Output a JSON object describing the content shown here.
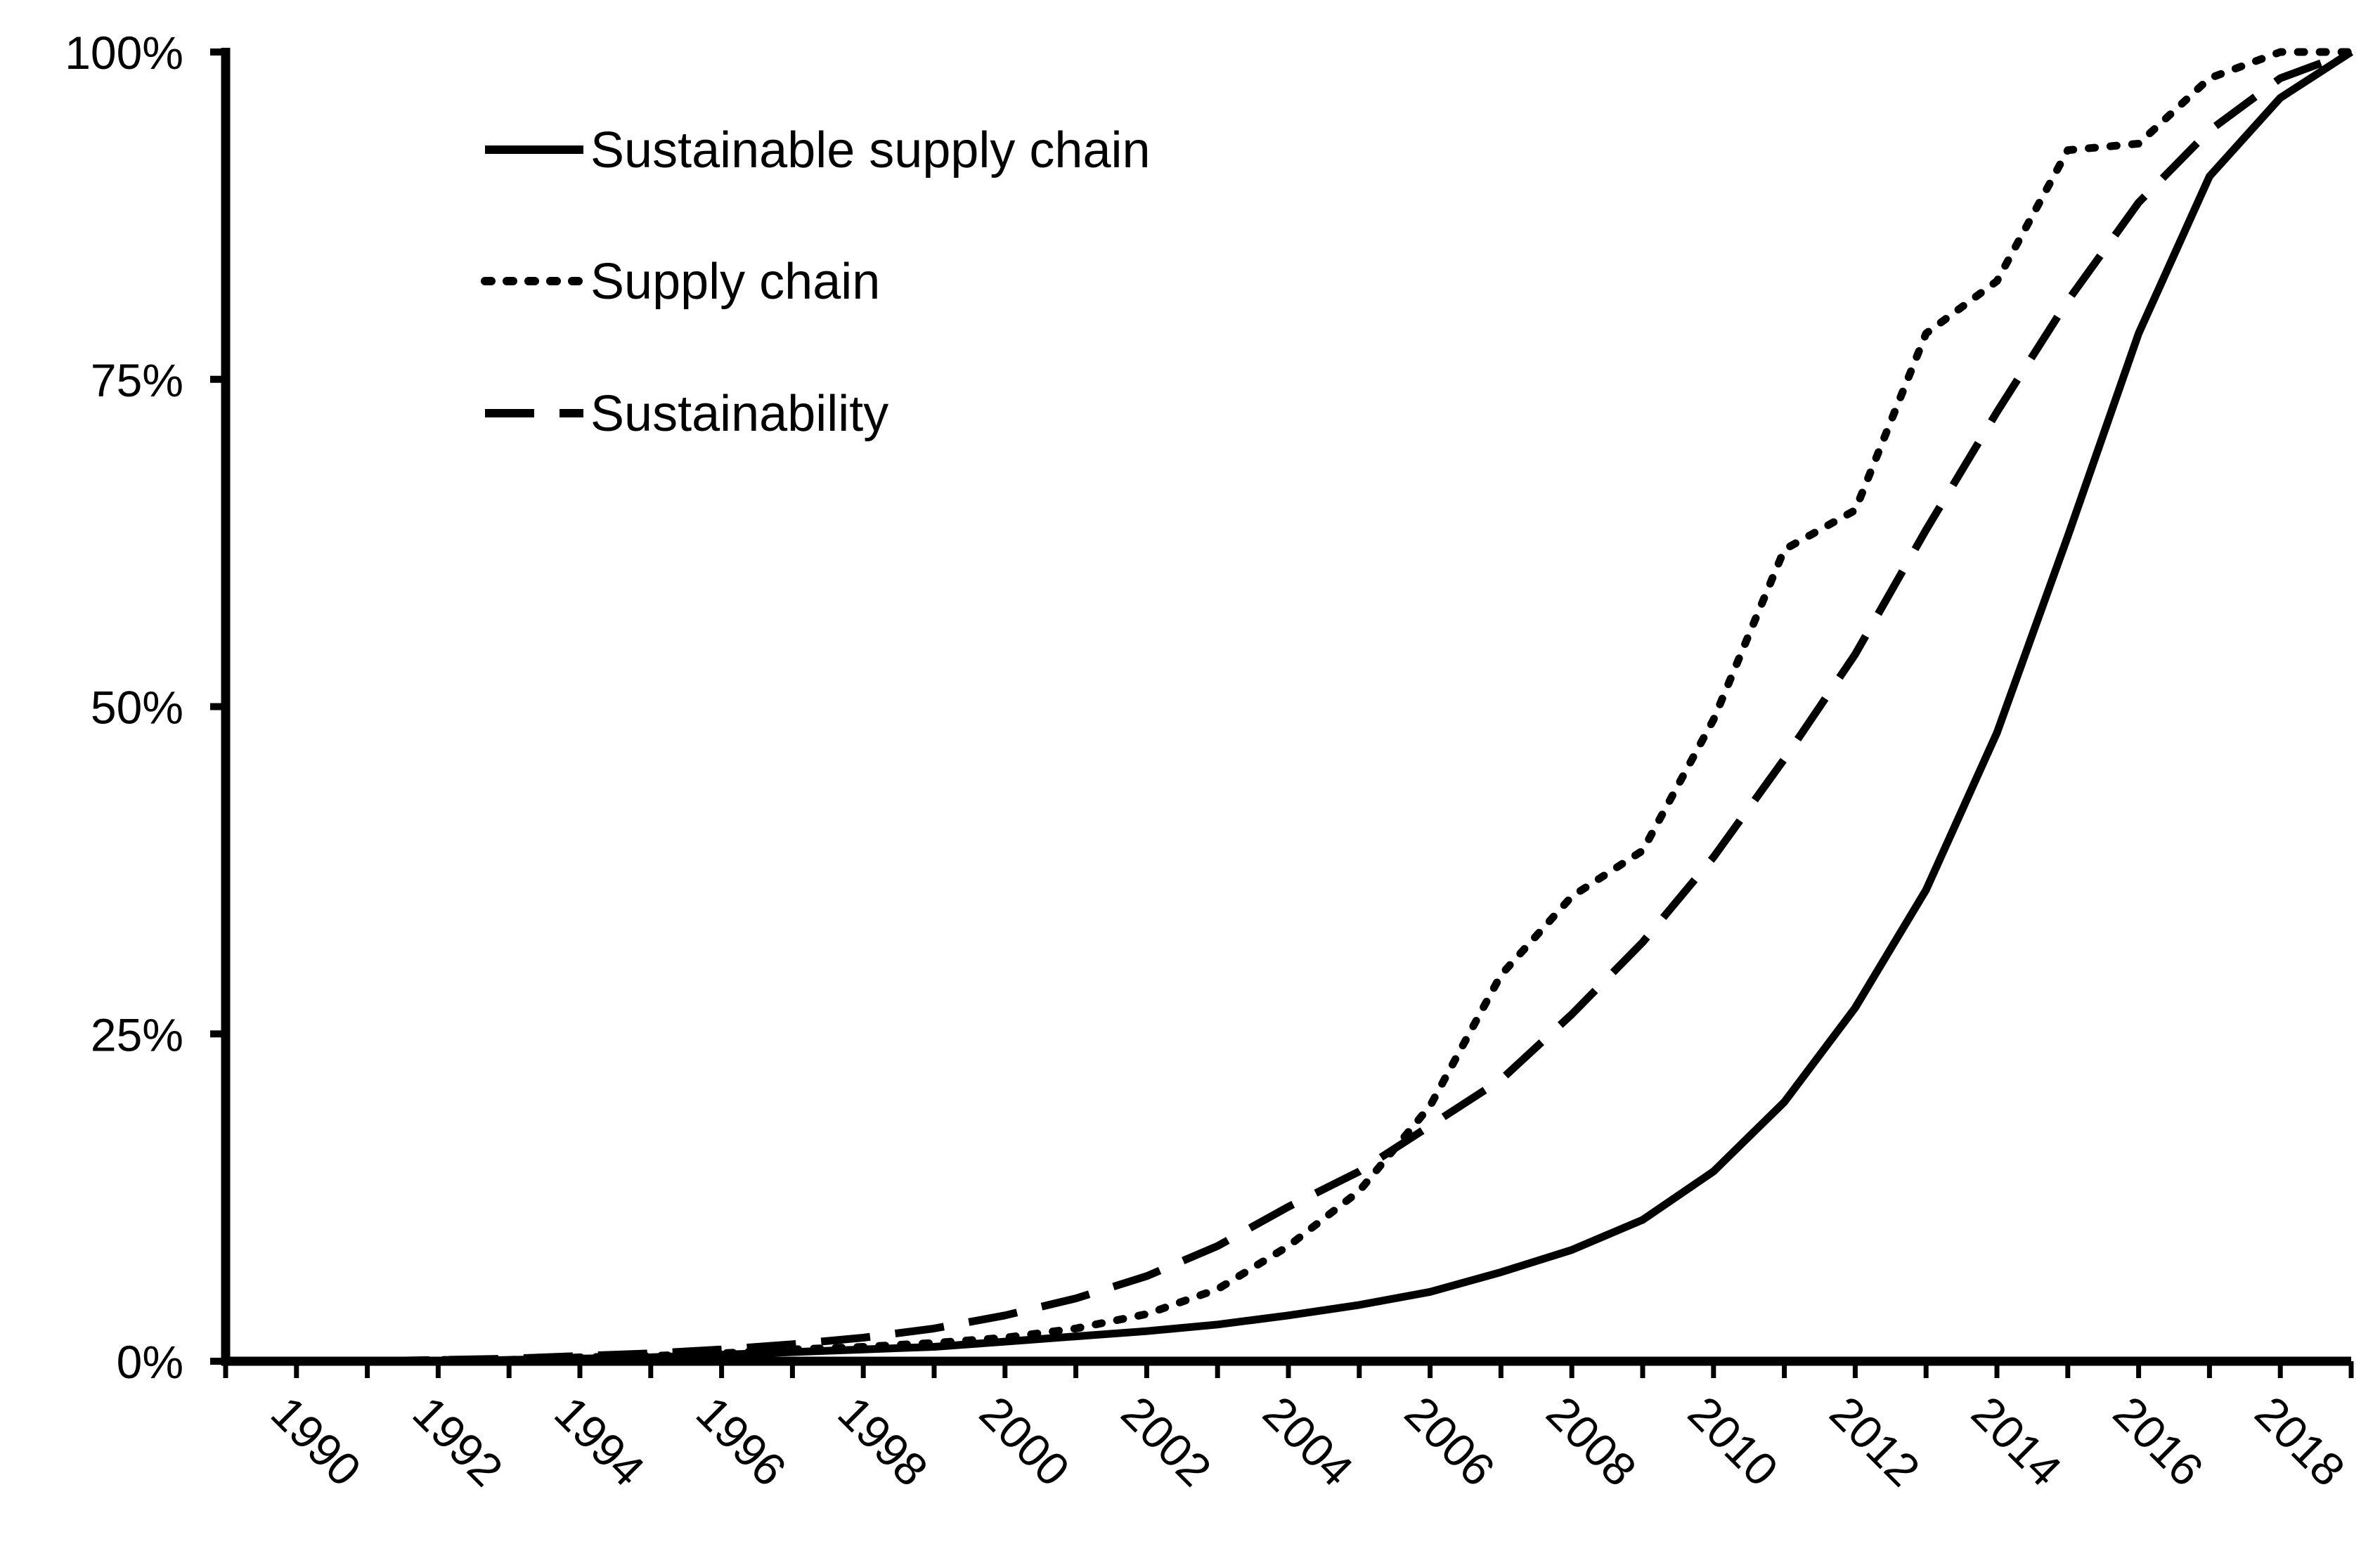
{
  "chart_data": {
    "type": "line",
    "title": "",
    "xlabel": "",
    "ylabel": "",
    "xlim": [
      1989,
      2019
    ],
    "ylim": [
      0,
      100
    ],
    "y_ticks": [
      0,
      25,
      50,
      75,
      100
    ],
    "y_tick_labels": [
      "0%",
      "25%",
      "50%",
      "75%",
      "100%"
    ],
    "x_ticks": [
      1990,
      1992,
      1994,
      1996,
      1998,
      2000,
      2002,
      2004,
      2006,
      2008,
      2010,
      2012,
      2014,
      2016,
      2018
    ],
    "x_tick_labels": [
      "1990",
      "1992",
      "1994",
      "1996",
      "1998",
      "2000",
      "2002",
      "2004",
      "2006",
      "2008",
      "2010",
      "2012",
      "2014",
      "2016",
      "2018"
    ],
    "grid": false,
    "legend_position": "top-left",
    "x": [
      1989,
      1990,
      1991,
      1992,
      1993,
      1994,
      1995,
      1996,
      1997,
      1998,
      1999,
      2000,
      2001,
      2002,
      2003,
      2004,
      2005,
      2006,
      2007,
      2008,
      2009,
      2010,
      2011,
      2012,
      2013,
      2014,
      2015,
      2016,
      2017,
      2018,
      2019
    ],
    "series": [
      {
        "name": "Sustainable supply chain",
        "style": "solid",
        "values": [
          0,
          0,
          0,
          0,
          0.1,
          0.2,
          0.3,
          0.5,
          0.7,
          0.9,
          1.1,
          1.5,
          1.9,
          2.3,
          2.8,
          3.5,
          4.3,
          5.3,
          6.8,
          8.5,
          10.8,
          14.5,
          19.8,
          27.0,
          36.0,
          48.0,
          63.0,
          78.5,
          90.5,
          96.5,
          100
        ]
      },
      {
        "name": "Supply chain",
        "style": "dotted",
        "values": [
          0,
          0,
          0,
          0.1,
          0.1,
          0.3,
          0.4,
          0.6,
          0.9,
          1.1,
          1.4,
          1.8,
          2.5,
          3.6,
          5.5,
          8.8,
          13.0,
          19.5,
          29.5,
          35.5,
          39.0,
          49.0,
          62.0,
          65.0,
          78.5,
          82.5,
          92.5,
          93.0,
          98.0,
          100,
          100
        ]
      },
      {
        "name": "Sustainability",
        "style": "dashed",
        "values": [
          0,
          0,
          0,
          0.1,
          0.2,
          0.4,
          0.6,
          0.9,
          1.3,
          1.8,
          2.5,
          3.5,
          4.8,
          6.5,
          8.8,
          11.8,
          14.5,
          18.0,
          21.5,
          26.5,
          32.0,
          38.5,
          46.0,
          54.0,
          63.5,
          72.5,
          81.0,
          88.5,
          94.0,
          98.0,
          100
        ]
      }
    ]
  }
}
